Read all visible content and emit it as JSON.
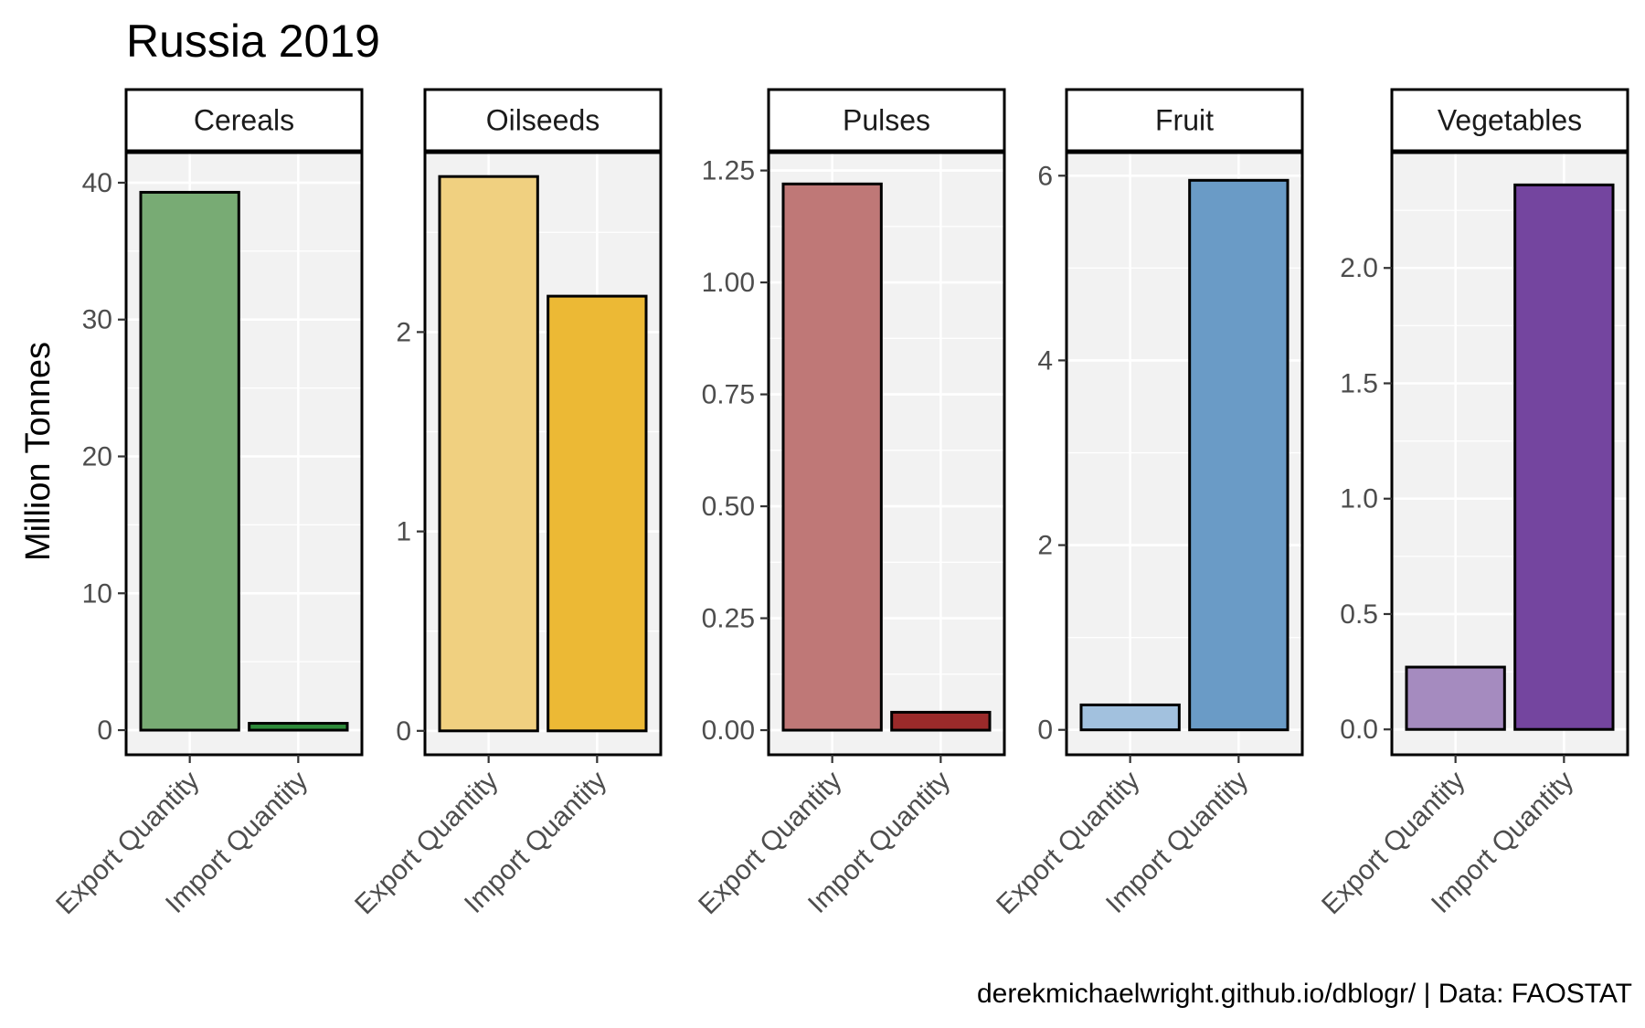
{
  "chart_data": {
    "type": "bar",
    "title": "Russia 2019",
    "ylabel": "Million Tonnes",
    "xlabel": "",
    "caption": "derekmichaelwright.github.io/dblogr/ | Data: FAOSTAT",
    "categories": [
      "Export Quantity",
      "Import Quantity"
    ],
    "facets": [
      {
        "name": "Cereals",
        "values": [
          39.3,
          0.5
        ],
        "ylim": [
          -1.8,
          42.2
        ],
        "ticks": [
          0,
          10,
          20,
          30,
          40
        ],
        "tick_labels": [
          "0",
          "10",
          "20",
          "30",
          "40"
        ],
        "colors": [
          "#78ab74",
          "#2e8b3a"
        ]
      },
      {
        "name": "Oilseeds",
        "values": [
          2.78,
          2.18
        ],
        "ylim": [
          -0.12,
          2.9
        ],
        "ticks": [
          0,
          1,
          2
        ],
        "tick_labels": [
          "0",
          "1",
          "2"
        ],
        "colors": [
          "#f0d080",
          "#ecb935"
        ]
      },
      {
        "name": "Pulses",
        "values": [
          1.22,
          0.04
        ],
        "ylim": [
          -0.055,
          1.29
        ],
        "ticks": [
          0,
          0.25,
          0.5,
          0.75,
          1.0,
          1.25
        ],
        "tick_labels": [
          "0.00",
          "0.25",
          "0.50",
          "0.75",
          "1.00",
          "1.25"
        ],
        "colors": [
          "#bf7877",
          "#9a2a2a"
        ]
      },
      {
        "name": "Fruit",
        "values": [
          0.27,
          5.95
        ],
        "ylim": [
          -0.27,
          6.25
        ],
        "ticks": [
          0,
          2,
          4,
          6
        ],
        "tick_labels": [
          "0",
          "2",
          "4",
          "6"
        ],
        "colors": [
          "#a2c1de",
          "#6a9bc6"
        ]
      },
      {
        "name": "Vegetables",
        "values": [
          0.27,
          2.36
        ],
        "ylim": [
          -0.11,
          2.5
        ],
        "ticks": [
          0,
          0.5,
          1.0,
          1.5,
          2.0
        ],
        "tick_labels": [
          "0.0",
          "0.5",
          "1.0",
          "1.5",
          "2.0"
        ],
        "colors": [
          "#a58bbf",
          "#74459f"
        ]
      }
    ],
    "grid": true,
    "legend": "none"
  },
  "colors": {
    "panel_background": "#f2f2f2",
    "grid": "#ffffff",
    "border": "#000000",
    "tick_text": "#4d4d4d"
  }
}
